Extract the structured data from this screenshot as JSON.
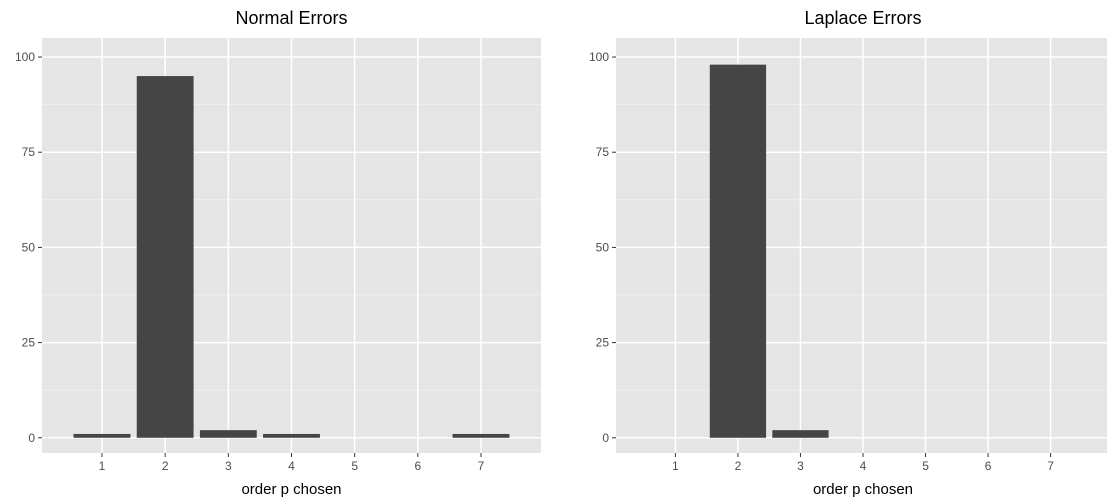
{
  "chart_data": [
    {
      "type": "bar",
      "title": "Normal Errors",
      "xlabel": "order p chosen",
      "ylabel": "",
      "categories": [
        "1",
        "2",
        "3",
        "4",
        "5",
        "6",
        "7"
      ],
      "values": [
        1,
        95,
        2,
        1,
        0,
        0,
        1
      ],
      "yticks": [
        0,
        25,
        50,
        75,
        100
      ],
      "ylim": [
        -4,
        105
      ],
      "xlim": [
        0.05,
        7.95
      ],
      "bar_color": "#454545",
      "panel_background": "#e5e5e5",
      "grid": true
    },
    {
      "type": "bar",
      "title": "Laplace Errors",
      "xlabel": "order p chosen",
      "ylabel": "",
      "categories": [
        "1",
        "2",
        "3",
        "4",
        "5",
        "6",
        "7"
      ],
      "values": [
        0,
        98,
        2,
        0,
        0,
        0,
        0
      ],
      "yticks": [
        0,
        25,
        50,
        75,
        100
      ],
      "ylim": [
        -4,
        105
      ],
      "xlim": [
        0.05,
        7.95
      ],
      "bar_color": "#454545",
      "panel_background": "#e5e5e5",
      "grid": true
    }
  ]
}
